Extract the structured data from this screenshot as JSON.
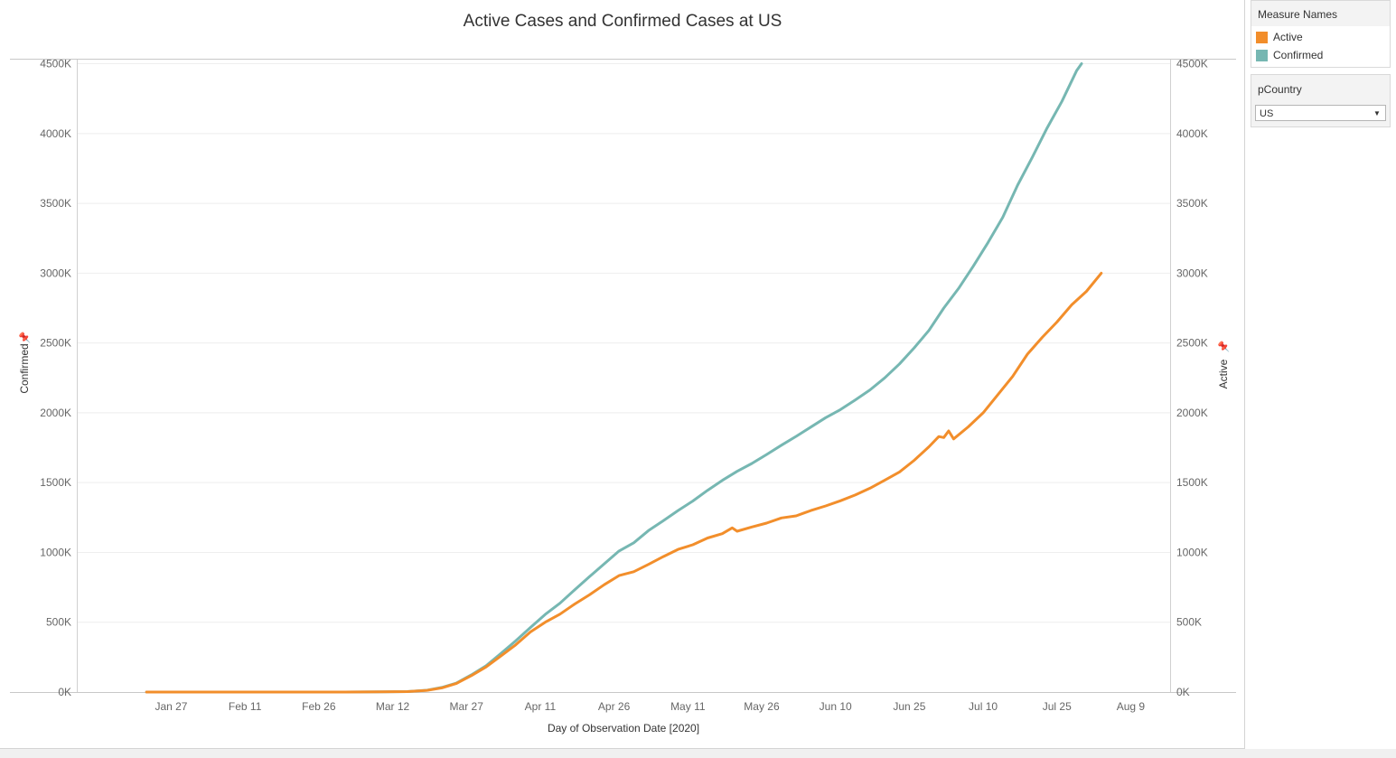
{
  "chart_data": {
    "type": "line",
    "title": "Active Cases and Confirmed Cases at US",
    "xlabel": "Day of Observation Date [2020]",
    "ylabel_left": "Confirmed",
    "ylabel_right": "Active",
    "x_tick_labels": [
      "Jan 27",
      "Feb 11",
      "Feb 26",
      "Mar 12",
      "Mar 27",
      "Apr 11",
      "Apr 26",
      "May 11",
      "May 26",
      "Jun 10",
      "Jun 25",
      "Jul 10",
      "Jul 25",
      "Aug 9"
    ],
    "y_tick_labels": [
      "0K",
      "500K",
      "1000K",
      "1500K",
      "2000K",
      "2500K",
      "3000K",
      "3500K",
      "4000K",
      "4500K"
    ],
    "ylim": [
      0,
      4500
    ],
    "xlim": [
      "2020-01-08",
      "2020-08-17"
    ],
    "y_units": "thousands",
    "legend_placement": "right",
    "series": [
      {
        "name": "Confirmed",
        "color": "#76b7b2",
        "points": [
          [
            "2020-01-22",
            0
          ],
          [
            "2020-02-15",
            0
          ],
          [
            "2020-03-01",
            0
          ],
          [
            "2020-03-10",
            1
          ],
          [
            "2020-03-15",
            3
          ],
          [
            "2020-03-19",
            13
          ],
          [
            "2020-03-22",
            33
          ],
          [
            "2020-03-25",
            65
          ],
          [
            "2020-03-28",
            123
          ],
          [
            "2020-03-31",
            188
          ],
          [
            "2020-04-03",
            276
          ],
          [
            "2020-04-06",
            366
          ],
          [
            "2020-04-09",
            462
          ],
          [
            "2020-04-12",
            556
          ],
          [
            "2020-04-15",
            636
          ],
          [
            "2020-04-18",
            732
          ],
          [
            "2020-04-21",
            826
          ],
          [
            "2020-04-24",
            918
          ],
          [
            "2020-04-27",
            1010
          ],
          [
            "2020-04-30",
            1069
          ],
          [
            "2020-05-03",
            1156
          ],
          [
            "2020-05-06",
            1227
          ],
          [
            "2020-05-09",
            1300
          ],
          [
            "2020-05-12",
            1368
          ],
          [
            "2020-05-15",
            1445
          ],
          [
            "2020-05-18",
            1516
          ],
          [
            "2020-05-21",
            1581
          ],
          [
            "2020-05-24",
            1637
          ],
          [
            "2020-05-27",
            1701
          ],
          [
            "2020-05-30",
            1768
          ],
          [
            "2020-06-02",
            1831
          ],
          [
            "2020-06-05",
            1898
          ],
          [
            "2020-06-08",
            1965
          ],
          [
            "2020-06-11",
            2023
          ],
          [
            "2020-06-14",
            2092
          ],
          [
            "2020-06-17",
            2164
          ],
          [
            "2020-06-20",
            2250
          ],
          [
            "2020-06-23",
            2350
          ],
          [
            "2020-06-26",
            2465
          ],
          [
            "2020-06-29",
            2590
          ],
          [
            "2020-07-02",
            2750
          ],
          [
            "2020-07-05",
            2890
          ],
          [
            "2020-07-08",
            3050
          ],
          [
            "2020-07-11",
            3220
          ],
          [
            "2020-07-14",
            3400
          ],
          [
            "2020-07-17",
            3630
          ],
          [
            "2020-07-20",
            3830
          ],
          [
            "2020-07-23",
            4040
          ],
          [
            "2020-07-26",
            4230
          ],
          [
            "2020-07-29",
            4450
          ],
          [
            "2020-07-30",
            4500
          ]
        ]
      },
      {
        "name": "Active",
        "color": "#f28e2b",
        "points": [
          [
            "2020-01-22",
            0
          ],
          [
            "2020-02-15",
            0
          ],
          [
            "2020-03-01",
            0
          ],
          [
            "2020-03-10",
            1
          ],
          [
            "2020-03-15",
            3
          ],
          [
            "2020-03-19",
            12
          ],
          [
            "2020-03-22",
            30
          ],
          [
            "2020-03-25",
            62
          ],
          [
            "2020-03-28",
            118
          ],
          [
            "2020-03-31",
            180
          ],
          [
            "2020-04-03",
            259
          ],
          [
            "2020-04-06",
            338
          ],
          [
            "2020-04-09",
            430
          ],
          [
            "2020-04-12",
            500
          ],
          [
            "2020-04-15",
            558
          ],
          [
            "2020-04-18",
            630
          ],
          [
            "2020-04-21",
            696
          ],
          [
            "2020-04-24",
            769
          ],
          [
            "2020-04-27",
            834
          ],
          [
            "2020-04-30",
            862
          ],
          [
            "2020-05-03",
            914
          ],
          [
            "2020-05-06",
            970
          ],
          [
            "2020-05-09",
            1022
          ],
          [
            "2020-05-12",
            1055
          ],
          [
            "2020-05-15",
            1103
          ],
          [
            "2020-05-18",
            1134
          ],
          [
            "2020-05-20",
            1176
          ],
          [
            "2020-05-21",
            1152
          ],
          [
            "2020-05-24",
            1182
          ],
          [
            "2020-05-27",
            1210
          ],
          [
            "2020-05-30",
            1247
          ],
          [
            "2020-06-02",
            1262
          ],
          [
            "2020-06-05",
            1300
          ],
          [
            "2020-06-08",
            1333
          ],
          [
            "2020-06-11",
            1370
          ],
          [
            "2020-06-14",
            1411
          ],
          [
            "2020-06-17",
            1460
          ],
          [
            "2020-06-20",
            1517
          ],
          [
            "2020-06-23",
            1576
          ],
          [
            "2020-06-26",
            1660
          ],
          [
            "2020-06-29",
            1757
          ],
          [
            "2020-07-01",
            1830
          ],
          [
            "2020-07-02",
            1823
          ],
          [
            "2020-07-03",
            1870
          ],
          [
            "2020-07-04",
            1813
          ],
          [
            "2020-07-07",
            1900
          ],
          [
            "2020-07-10",
            2000
          ],
          [
            "2020-07-13",
            2130
          ],
          [
            "2020-07-16",
            2260
          ],
          [
            "2020-07-19",
            2420
          ],
          [
            "2020-07-22",
            2540
          ],
          [
            "2020-07-25",
            2650
          ],
          [
            "2020-07-28",
            2773
          ],
          [
            "2020-07-31",
            2870
          ],
          [
            "2020-08-03",
            3000
          ]
        ]
      }
    ]
  },
  "legend": {
    "title": "Measure Names",
    "items": [
      {
        "label": "Active",
        "color": "#f28e2b"
      },
      {
        "label": "Confirmed",
        "color": "#76b7b2"
      }
    ]
  },
  "parameter": {
    "title": "pCountry",
    "selected": "US"
  }
}
